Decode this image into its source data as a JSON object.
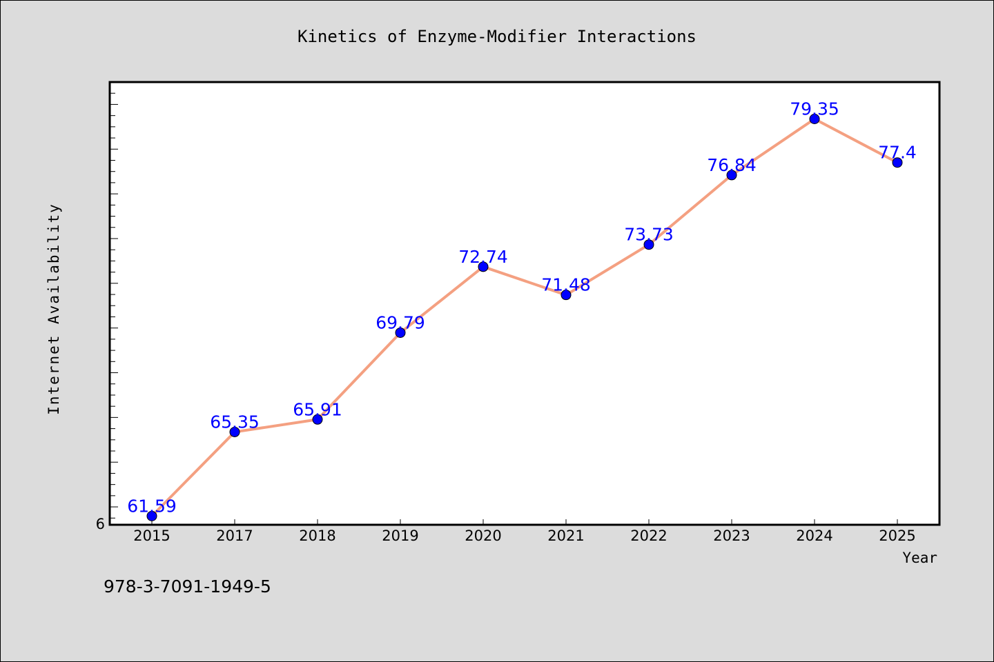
{
  "chart_data": {
    "type": "line",
    "title": "Kinetics of Enzyme-Modifier Interactions",
    "xlabel": "Year",
    "ylabel": "Internet Availability",
    "categories": [
      "2015",
      "2017",
      "2018",
      "2019",
      "2020",
      "2021",
      "2022",
      "2023",
      "2024",
      "2025"
    ],
    "series": [
      {
        "values": [
          61.59,
          65.35,
          65.91,
          69.79,
          72.74,
          71.48,
          73.73,
          76.84,
          79.35,
          77.4
        ]
      }
    ],
    "data_labels": [
      "61.59",
      "65.35",
      "65.91",
      "69.79",
      "72.74",
      "71.48",
      "73.73",
      "76.84",
      "79.35",
      "77.4"
    ],
    "y_min_tick_label": "6",
    "ylim": [
      61.2,
      81.0
    ],
    "grid": false,
    "line_color": "#f4a081",
    "marker_color": "#0000ff",
    "label_color": "#0000ff"
  },
  "caption": "978-3-7091-1949-5"
}
